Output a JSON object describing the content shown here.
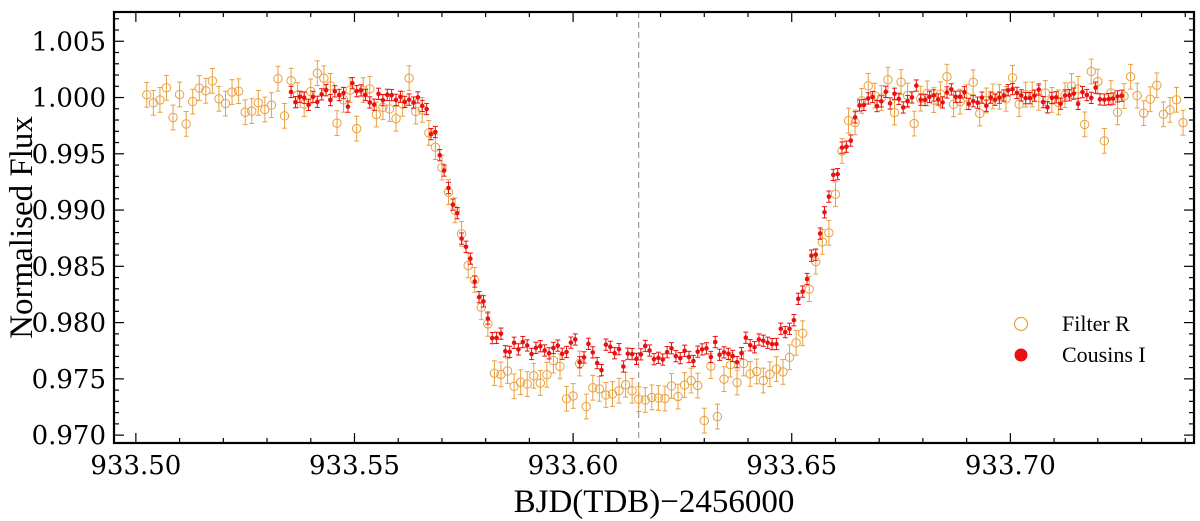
{
  "chart_data": {
    "type": "scatter",
    "xlabel": "BJD(TDB)−2456000",
    "ylabel": "Normalised Flux",
    "xlim": [
      933.495,
      933.742
    ],
    "ylim": [
      0.9693,
      1.0076
    ],
    "x_ticks": [
      933.5,
      933.55,
      933.6,
      933.65,
      933.7
    ],
    "x_tick_labels": [
      "933.50",
      "933.55",
      "933.60",
      "933.65",
      "933.70"
    ],
    "y_ticks": [
      0.97,
      0.975,
      0.98,
      0.985,
      0.99,
      0.995,
      1.0,
      1.005
    ],
    "y_tick_labels": [
      "0.970",
      "0.975",
      "0.980",
      "0.985",
      "0.990",
      "0.995",
      "1.000",
      "1.005"
    ],
    "reference_line_x": 933.615,
    "legend": {
      "position": "bottom-right"
    },
    "transit_model": {
      "baseline": 1.0,
      "t1": 933.5625,
      "t2": 933.585,
      "t3": 933.646,
      "t4": 933.6685,
      "t_mid": 933.615
    },
    "series": [
      {
        "name": "Filter R",
        "marker": "open-circle",
        "color": "#e8a040",
        "x_start": 933.5025,
        "x_end": 933.7405,
        "step": 0.0015,
        "depth": 0.0242,
        "curvature": 0.0018,
        "noise": 0.0011,
        "error": 0.0011
      },
      {
        "name": "Cousins I",
        "marker": "filled-circle",
        "color": "#e81010",
        "x_start": 933.5355,
        "x_end": 933.7255,
        "step": 0.001,
        "depth": 0.0218,
        "curvature": 0.001,
        "noise": 0.0005,
        "error": 0.0005
      }
    ]
  }
}
